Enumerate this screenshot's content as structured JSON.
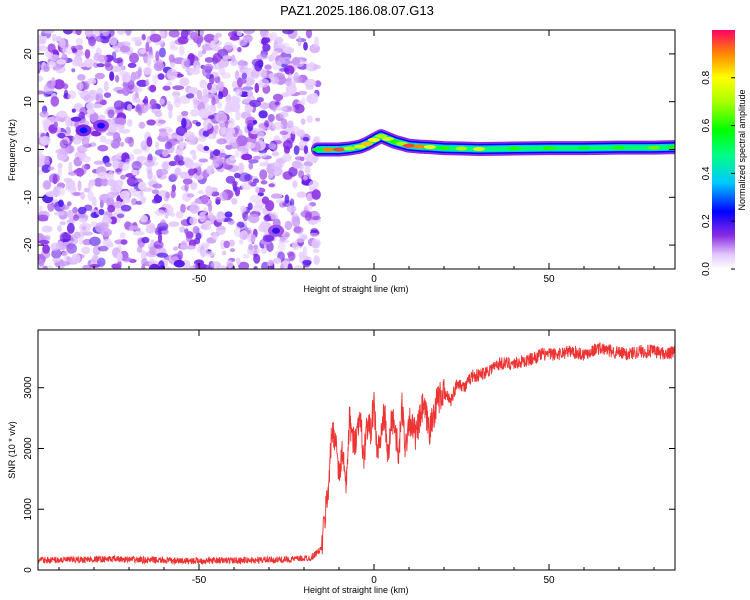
{
  "title": "PAZ1.2025.186.08.07.G13",
  "colors": {
    "series_line": "#ee3333",
    "spectrum_noise": "#8a2be2",
    "background": "#ffffff"
  },
  "chart_data": [
    {
      "type": "heatmap",
      "xlabel": "Height of straight line (km)",
      "ylabel": "Frequency (Hz)",
      "xlim": [
        -96,
        86
      ],
      "ylim": [
        -25,
        25
      ],
      "x_ticks": [
        -50,
        0,
        50
      ],
      "y_ticks": [
        -20,
        -10,
        0,
        10,
        20
      ],
      "x_tick_labels": [
        "-50",
        "0",
        "50"
      ],
      "y_tick_labels": [
        "-20",
        "-10",
        "0",
        "10",
        "20"
      ],
      "colorscale": "rainbow",
      "colorbar": {
        "label": "Normalized spectral amplitude",
        "range": [
          0,
          1
        ],
        "ticks": [
          0.0,
          0.2,
          0.4,
          0.6,
          0.8
        ],
        "tick_labels": [
          "0.0",
          "0.2",
          "0.4",
          "0.6",
          "0.8"
        ]
      },
      "noise_region_x": [
        -96,
        -16
      ],
      "signal_trace": {
        "x": [
          -16,
          -13,
          -10,
          -7,
          -4,
          -2,
          0,
          2,
          4,
          6,
          8,
          10,
          13,
          16,
          20,
          25,
          30,
          40,
          50,
          60,
          70,
          80,
          86
        ],
        "frequency": [
          0.0,
          0.0,
          0.0,
          0.2,
          0.6,
          1.2,
          2.0,
          2.8,
          2.2,
          1.6,
          1.2,
          0.8,
          0.6,
          0.5,
          0.3,
          0.2,
          0.1,
          0.2,
          0.3,
          0.3,
          0.4,
          0.4,
          0.5
        ],
        "amplitude": [
          0.55,
          0.9,
          0.95,
          0.7,
          0.75,
          0.85,
          0.8,
          0.7,
          0.75,
          0.6,
          0.7,
          0.95,
          0.9,
          0.8,
          0.6,
          0.7,
          0.75,
          0.6,
          0.6,
          0.55,
          0.6,
          0.65,
          0.6
        ]
      },
      "hotspots": [
        {
          "x": -83,
          "y": 4,
          "amplitude": 0.25
        },
        {
          "x": -78,
          "y": 5,
          "amplitude": 0.22
        },
        {
          "x": -28,
          "y": -17,
          "amplitude": 0.2
        }
      ]
    },
    {
      "type": "line",
      "xlabel": "Height of straight line (km)",
      "ylabel": "SNR (10 * v/v)",
      "xlim": [
        -96,
        86
      ],
      "ylim": [
        0,
        3950
      ],
      "x_ticks": [
        -50,
        0,
        50
      ],
      "y_ticks": [
        0,
        1000,
        2000,
        3000
      ],
      "x_tick_labels": [
        "-50",
        "0",
        "50"
      ],
      "y_tick_labels": [
        "0",
        "1000",
        "2000",
        "3000"
      ],
      "series": [
        {
          "x": [
            -96,
            -85,
            -75,
            -65,
            -55,
            -45,
            -35,
            -25,
            -18,
            -15,
            -13,
            -12,
            -11,
            -10,
            -9,
            -8,
            -7,
            -6,
            -5,
            -4,
            -3,
            -2,
            -1,
            0,
            1,
            2,
            3,
            4,
            5,
            6,
            7,
            8,
            9,
            10,
            12,
            14,
            16,
            18,
            20,
            22,
            24,
            26,
            28,
            30,
            33,
            36,
            40,
            44,
            48,
            52,
            56,
            60,
            64,
            68,
            72,
            76,
            80,
            84,
            86
          ],
          "values": [
            160,
            170,
            180,
            165,
            150,
            155,
            160,
            170,
            200,
            350,
            1400,
            2300,
            2200,
            1500,
            2000,
            1300,
            2500,
            2100,
            2200,
            2600,
            1800,
            2400,
            2300,
            2700,
            1900,
            2200,
            2600,
            1800,
            2500,
            2400,
            1800,
            2700,
            2000,
            2500,
            2200,
            2700,
            2300,
            2800,
            2900,
            2800,
            3100,
            3000,
            3200,
            3200,
            3300,
            3400,
            3400,
            3450,
            3550,
            3550,
            3600,
            3550,
            3650,
            3600,
            3550,
            3600,
            3600,
            3550,
            3600
          ]
        }
      ]
    }
  ]
}
